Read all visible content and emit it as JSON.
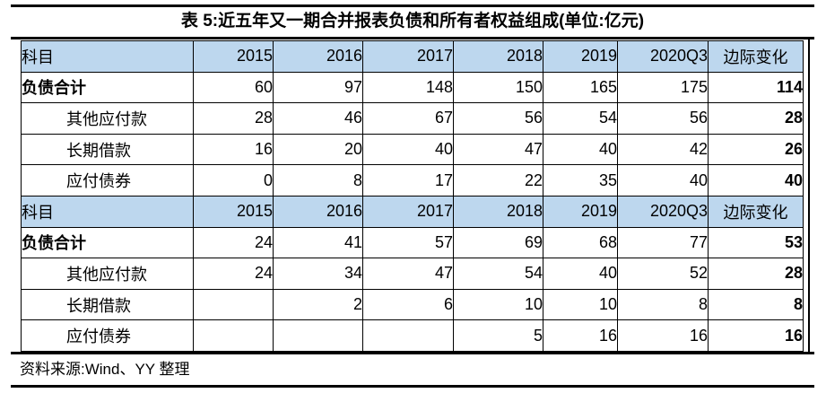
{
  "title": "表 5:近五年又一期合并报表负债和所有者权益组成(单位:亿元)",
  "source_note": "资料来源:Wind、YY 整理",
  "colors": {
    "header_bg": "#BDD7EE",
    "border": "#000000",
    "background": "#FFFFFF",
    "text": "#000000"
  },
  "table": {
    "columns": [
      "科目",
      "2015",
      "2016",
      "2017",
      "2018",
      "2019",
      "2020Q3",
      "边际变化"
    ],
    "sections": [
      {
        "rows": [
          {
            "label": "负债合计",
            "bold": true,
            "indent": false,
            "values": [
              "60",
              "97",
              "148",
              "150",
              "165",
              "175",
              "114"
            ]
          },
          {
            "label": "其他应付款",
            "bold": false,
            "indent": true,
            "values": [
              "28",
              "46",
              "67",
              "56",
              "54",
              "56",
              "28"
            ]
          },
          {
            "label": "长期借款",
            "bold": false,
            "indent": true,
            "values": [
              "16",
              "20",
              "40",
              "47",
              "40",
              "42",
              "26"
            ]
          },
          {
            "label": "应付债券",
            "bold": false,
            "indent": true,
            "values": [
              "0",
              "8",
              "17",
              "22",
              "35",
              "40",
              "40"
            ]
          }
        ]
      },
      {
        "rows": [
          {
            "label": "负债合计",
            "bold": true,
            "indent": false,
            "values": [
              "24",
              "41",
              "57",
              "69",
              "68",
              "77",
              "53"
            ]
          },
          {
            "label": "其他应付款",
            "bold": false,
            "indent": true,
            "values": [
              "24",
              "34",
              "47",
              "54",
              "40",
              "52",
              "28"
            ]
          },
          {
            "label": "长期借款",
            "bold": false,
            "indent": true,
            "values": [
              "",
              "2",
              "6",
              "10",
              "10",
              "8",
              "8"
            ]
          },
          {
            "label": "应付债券",
            "bold": false,
            "indent": true,
            "values": [
              "",
              "",
              "",
              "5",
              "16",
              "16",
              "16"
            ]
          }
        ]
      }
    ]
  }
}
